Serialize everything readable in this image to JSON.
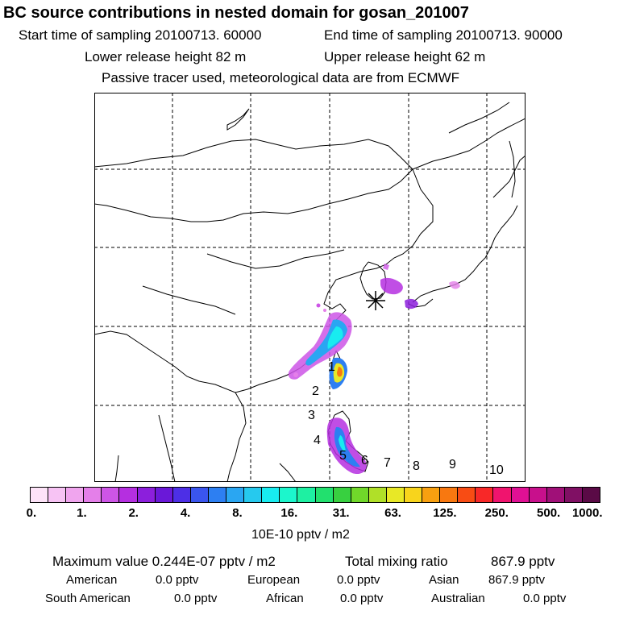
{
  "header": {
    "title": "BC  source contributions in nested domain for gosan_201007",
    "start_time": "Start time of sampling 20100713. 60000",
    "end_time": "End time of sampling 20100713. 90000",
    "lower_release": "Lower release height   82 m",
    "upper_release": "Upper release height   62 m",
    "tracer_note": "Passive tracer used, meteorological data are from ECMWF"
  },
  "map": {
    "region_labels": [
      "1",
      "2",
      "3",
      "4",
      "5",
      "6",
      "7",
      "8",
      "9",
      "10"
    ],
    "receptor_marker": "asterisk-receptor"
  },
  "colorbar": {
    "colors": [
      "#fde3f8",
      "#f7c3f4",
      "#f0a5ee",
      "#e47fe9",
      "#cd55e6",
      "#b52fe0",
      "#8c1fdc",
      "#6a18d8",
      "#4d2fe6",
      "#3a55ee",
      "#2d7ff2",
      "#2aa6f2",
      "#26c9ee",
      "#18ecf0",
      "#1cf6cc",
      "#1ef0a2",
      "#22e06e",
      "#38d040",
      "#70d82a",
      "#b0e028",
      "#e8e826",
      "#f8d41c",
      "#f8a010",
      "#f87810",
      "#f84c14",
      "#f82828",
      "#f0146e",
      "#e01094",
      "#c8108c",
      "#a01078",
      "#801064",
      "#5a0a46"
    ],
    "tick_labels": [
      "0.",
      "1.",
      "2.",
      "4.",
      "8.",
      "16.",
      "31.",
      "63.",
      "125.",
      "250.",
      "500.",
      "1000."
    ],
    "unit_label": "10E-10 pptv / m2"
  },
  "summary": {
    "maximum_value": "Maximum value  0.244E-07 pptv / m2",
    "total_mixing_ratio": "Total mixing ratio",
    "total_value": "867.9 pptv",
    "american_label": "American",
    "american_value": "0.0 pptv",
    "european_label": "European",
    "european_value": "0.0 pptv",
    "asian_label": "Asian",
    "asian_value": "867.9 pptv",
    "south_american_label": "South American",
    "south_american_value": "0.0 pptv",
    "african_label": "African",
    "african_value": "0.0 pptv",
    "australian_label": "Australian",
    "australian_value": "0.0 pptv"
  }
}
